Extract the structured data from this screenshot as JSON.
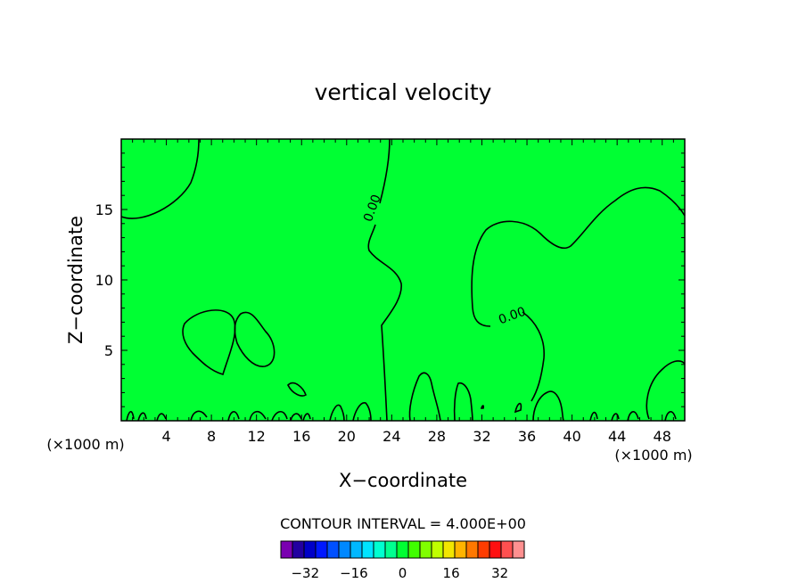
{
  "chart_data": {
    "type": "contour",
    "title": "vertical velocity",
    "xlabel": "X−coordinate",
    "ylabel": "Z−coordinate",
    "x_unit_left": "(×1000 m)",
    "x_unit_right": "(×1000 m)",
    "xlim": [
      0,
      50
    ],
    "ylim": [
      0,
      20
    ],
    "x_ticks": [
      4,
      8,
      12,
      16,
      20,
      24,
      28,
      32,
      36,
      40,
      44,
      48
    ],
    "y_ticks": [
      5,
      10,
      15
    ],
    "background_color": "#00ff33",
    "contour_levels": [
      {
        "label": "0.00",
        "x": 22.6,
        "y": 15.0
      },
      {
        "label": "0.00",
        "x": 34.8,
        "y": 7.2
      }
    ],
    "contour_interval_text": "CONTOUR INTERVAL = 4.000E+00",
    "colorbar": {
      "min": -40,
      "max": 40,
      "step": 4,
      "tick_labels": [
        "−32",
        "−16",
        "0",
        "16",
        "32"
      ],
      "tick_values": [
        -32,
        -16,
        0,
        16,
        32
      ],
      "colors": [
        "#7a00b0",
        "#2200a0",
        "#0000c8",
        "#0018ff",
        "#0050ff",
        "#0088ff",
        "#00b8ff",
        "#00e4ff",
        "#00ffd0",
        "#00ff90",
        "#00ff33",
        "#40ff00",
        "#80ff00",
        "#c0ff00",
        "#f2e600",
        "#ffb400",
        "#ff7800",
        "#ff3c00",
        "#ff1010",
        "#ff5050",
        "#ff9090"
      ]
    }
  }
}
